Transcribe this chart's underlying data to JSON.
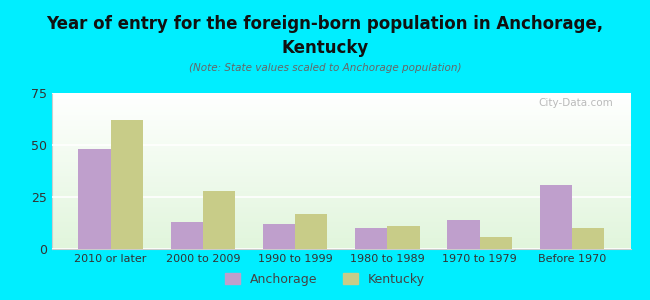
{
  "title_line1": "Year of entry for the foreign-born population in Anchorage,",
  "title_line2": "Kentucky",
  "subtitle": "(Note: State values scaled to Anchorage population)",
  "categories": [
    "2010 or later",
    "2000 to 2009",
    "1990 to 1999",
    "1980 to 1989",
    "1970 to 1979",
    "Before 1970"
  ],
  "anchorage_values": [
    48,
    13,
    12,
    10,
    14,
    31
  ],
  "kentucky_values": [
    62,
    28,
    17,
    11,
    6,
    10
  ],
  "anchorage_color": "#bf9fcc",
  "kentucky_color": "#c8cc88",
  "background_color": "#00eeff",
  "ylim": [
    0,
    75
  ],
  "yticks": [
    0,
    25,
    50,
    75
  ],
  "bar_width": 0.35,
  "watermark": "City-Data.com",
  "legend_labels": [
    "Anchorage",
    "Kentucky"
  ],
  "title_fontsize": 12,
  "subtitle_fontsize": 7.5,
  "tick_fontsize": 8
}
